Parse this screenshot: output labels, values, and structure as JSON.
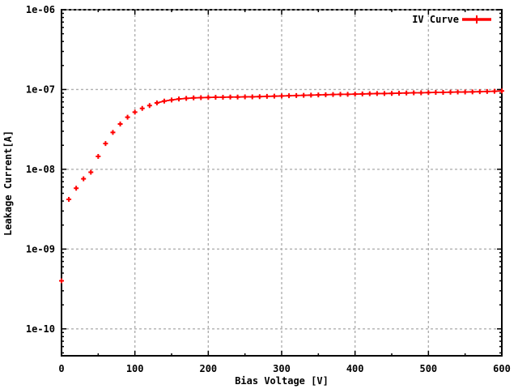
{
  "figure": {
    "background": "#ffffff",
    "border_color": "#000000",
    "grid_color": "#b0b0b0",
    "text_color": "#000000"
  },
  "chart_data": {
    "type": "line",
    "title": "",
    "xlabel": "Bias Voltage [V]",
    "ylabel": "Leakage Current[A]",
    "x_scale": "linear",
    "y_scale": "log",
    "xlim": [
      0,
      600
    ],
    "ylim": [
      4.6e-11,
      1e-06
    ],
    "x_ticks": [
      0,
      100,
      200,
      300,
      400,
      500,
      600
    ],
    "x_minor_ticks": [
      50,
      150,
      250,
      350,
      450,
      550
    ],
    "y_ticks": [
      "1e-10",
      "1e-09",
      "1e-08",
      "1e-07",
      "1e-06"
    ],
    "grid": true,
    "legend_position": "top-right",
    "series": [
      {
        "name": "IV Curve",
        "color": "#ff0000",
        "marker": "plus",
        "x": [
          0,
          10,
          20,
          30,
          40,
          50,
          60,
          70,
          80,
          90,
          100,
          110,
          120,
          130,
          140,
          150,
          160,
          170,
          180,
          190,
          200,
          210,
          220,
          230,
          240,
          250,
          260,
          270,
          280,
          290,
          300,
          310,
          320,
          330,
          340,
          350,
          360,
          370,
          380,
          390,
          400,
          410,
          420,
          430,
          440,
          450,
          460,
          470,
          480,
          490,
          500,
          510,
          520,
          530,
          540,
          550,
          560,
          570,
          580,
          590,
          600
        ],
        "y": [
          4e-10,
          4.2e-09,
          5.8e-09,
          7.6e-09,
          9.2e-09,
          1.45e-08,
          2.1e-08,
          2.9e-08,
          3.7e-08,
          4.5e-08,
          5.2e-08,
          5.8e-08,
          6.3e-08,
          6.8e-08,
          7.15e-08,
          7.4e-08,
          7.6e-08,
          7.75e-08,
          7.85e-08,
          7.9e-08,
          7.95e-08,
          8e-08,
          8e-08,
          8.05e-08,
          8.05e-08,
          8.1e-08,
          8.1e-08,
          8.15e-08,
          8.2e-08,
          8.25e-08,
          8.3e-08,
          8.35e-08,
          8.4e-08,
          8.45e-08,
          8.5e-08,
          8.55e-08,
          8.6e-08,
          8.65e-08,
          8.7e-08,
          8.7e-08,
          8.75e-08,
          8.8e-08,
          8.85e-08,
          8.9e-08,
          8.9e-08,
          8.95e-08,
          9e-08,
          9.05e-08,
          9.1e-08,
          9.1e-08,
          9.15e-08,
          9.2e-08,
          9.2e-08,
          9.25e-08,
          9.3e-08,
          9.3e-08,
          9.35e-08,
          9.4e-08,
          9.45e-08,
          9.5e-08,
          9.6e-08
        ]
      }
    ]
  }
}
